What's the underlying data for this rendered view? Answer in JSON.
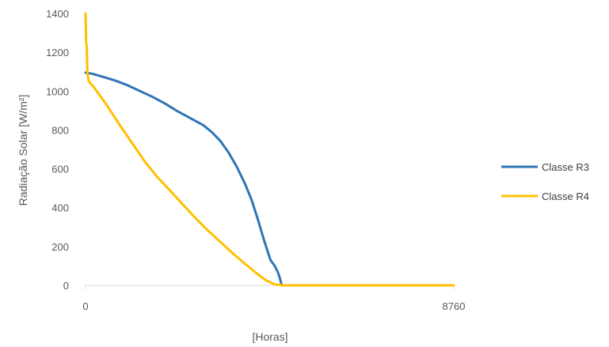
{
  "chart_data": {
    "type": "line",
    "xlabel": "[Horas]",
    "ylabel": "Radiação Solar [W/m²]",
    "xlim": [
      0,
      8760
    ],
    "ylim": [
      0,
      1400
    ],
    "x_ticks": [
      "0",
      "8760"
    ],
    "y_ticks": [
      "0",
      "200",
      "400",
      "600",
      "800",
      "1000",
      "1200",
      "1400"
    ],
    "grid": false,
    "legend_position": "right",
    "series": [
      {
        "name": "Classe R3",
        "color": "#2E75B6",
        "points": [
          [
            0,
            1095
          ],
          [
            150,
            1090
          ],
          [
            400,
            1075
          ],
          [
            700,
            1055
          ],
          [
            1000,
            1030
          ],
          [
            1300,
            1000
          ],
          [
            1600,
            970
          ],
          [
            1900,
            935
          ],
          [
            2200,
            895
          ],
          [
            2500,
            860
          ],
          [
            2800,
            825
          ],
          [
            3000,
            790
          ],
          [
            3200,
            745
          ],
          [
            3400,
            685
          ],
          [
            3600,
            610
          ],
          [
            3800,
            520
          ],
          [
            3950,
            440
          ],
          [
            4100,
            340
          ],
          [
            4250,
            230
          ],
          [
            4400,
            130
          ],
          [
            4500,
            100
          ],
          [
            4580,
            65
          ],
          [
            4620,
            40
          ],
          [
            4650,
            15
          ],
          [
            4670,
            0
          ]
        ]
      },
      {
        "name": "Classe R4",
        "color": "#FFC000",
        "points": [
          [
            0,
            1400
          ],
          [
            15,
            1250
          ],
          [
            30,
            1230
          ],
          [
            45,
            1090
          ],
          [
            80,
            1050
          ],
          [
            200,
            1020
          ],
          [
            500,
            930
          ],
          [
            800,
            830
          ],
          [
            1100,
            735
          ],
          [
            1400,
            640
          ],
          [
            1700,
            560
          ],
          [
            2000,
            490
          ],
          [
            2300,
            420
          ],
          [
            2600,
            350
          ],
          [
            2900,
            285
          ],
          [
            3200,
            225
          ],
          [
            3500,
            165
          ],
          [
            3800,
            110
          ],
          [
            4050,
            65
          ],
          [
            4300,
            25
          ],
          [
            4500,
            5
          ],
          [
            4700,
            0
          ],
          [
            8760,
            0
          ]
        ]
      }
    ]
  }
}
